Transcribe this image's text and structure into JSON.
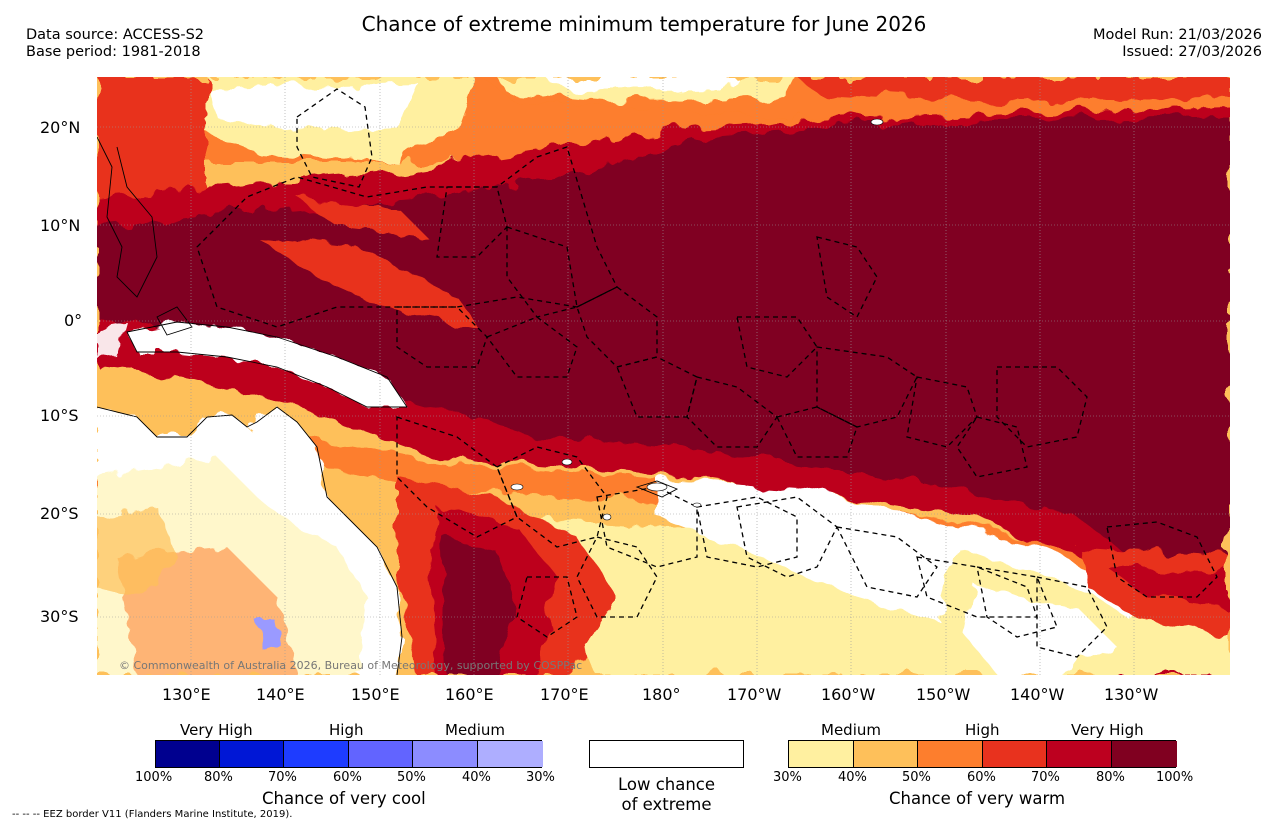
{
  "title": "Chance of extreme minimum temperature for June 2026",
  "meta": {
    "data_source": "Data source: ACCESS-S2",
    "base_period": "Base period: 1981-2018",
    "model_run": "Model Run: 21/03/2026",
    "issued": "Issued: 27/03/2026"
  },
  "map": {
    "lat_labels": [
      "20°N",
      "10°N",
      "0°",
      "10°S",
      "20°S",
      "30°S"
    ],
    "lon_labels": [
      "130°E",
      "140°E",
      "150°E",
      "160°E",
      "170°E",
      "180°",
      "170°W",
      "160°W",
      "150°W",
      "140°W",
      "130°W"
    ],
    "copyright": "© Commonwealth of Australia 2026, Bureau of Meteorology, supported by COSPPac",
    "colors": {
      "land": "#ffffff",
      "warm_30": "#fff0a0",
      "warm_40": "#fec05a",
      "warm_50": "#fd7e2d",
      "warm_60": "#e8321e",
      "warm_70": "#bd001f",
      "warm_80": "#800020",
      "cool_30": "#9a9aff"
    }
  },
  "legend": {
    "cool": {
      "bands": [
        "Very High",
        "High",
        "Medium"
      ],
      "ticks": [
        "100%",
        "80%",
        "70%",
        "60%",
        "50%",
        "40%",
        "30%"
      ],
      "colors": [
        "#00008f",
        "#0017d6",
        "#1e3cff",
        "#6264ff",
        "#8c8cff",
        "#aeaeff"
      ],
      "caption": "Chance of very cool"
    },
    "neutral": {
      "caption_line1": "Low chance",
      "caption_line2": "of extreme",
      "color": "#ffffff"
    },
    "warm": {
      "bands": [
        "Medium",
        "High",
        "Very High"
      ],
      "ticks": [
        "30%",
        "40%",
        "50%",
        "60%",
        "70%",
        "80%",
        "100%"
      ],
      "colors": [
        "#fff0a0",
        "#fec05a",
        "#fd7e2d",
        "#e8321e",
        "#bd001f",
        "#800020"
      ],
      "caption": "Chance of very warm"
    }
  },
  "footer": "-- -- -- EEZ border V11 (Flanders Marine Institute, 2019)."
}
